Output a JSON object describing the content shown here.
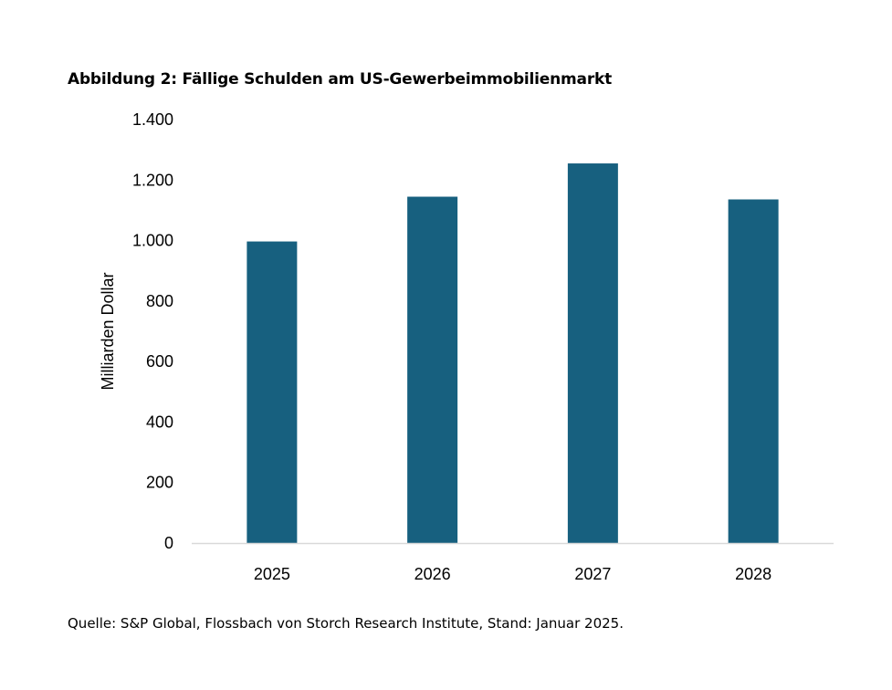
{
  "chart_data": {
    "type": "bar",
    "title": "Abbildung 2: Fällige Schulden am US-Gewerbeimmobilienmarkt",
    "categories": [
      "2025",
      "2026",
      "2027",
      "2028"
    ],
    "values": [
      997,
      1145,
      1255,
      1136
    ],
    "xlabel": "",
    "ylabel": "Milliarden Dollar",
    "ylim": [
      0,
      1400
    ],
    "yticks": [
      0,
      200,
      400,
      600,
      800,
      1000,
      1200,
      1400
    ],
    "ytick_labels": [
      "0",
      "200",
      "400",
      "600",
      "800",
      "1.000",
      "1.200",
      "1.400"
    ],
    "bar_color": "#17607f",
    "axis_color": "#d9d9d9",
    "grid": false,
    "source": "Quelle: S&P Global, Flossbach von Storch Research Institute, Stand: Januar 2025."
  }
}
